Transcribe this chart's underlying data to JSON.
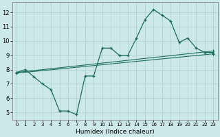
{
  "xlabel": "Humidex (Indice chaleur)",
  "ylabel": "",
  "xlim": [
    -0.5,
    23.5
  ],
  "ylim": [
    4.5,
    12.7
  ],
  "xticks": [
    0,
    1,
    2,
    3,
    4,
    5,
    6,
    7,
    8,
    9,
    10,
    11,
    12,
    13,
    14,
    15,
    16,
    17,
    18,
    19,
    20,
    21,
    22,
    23
  ],
  "yticks": [
    5,
    6,
    7,
    8,
    9,
    10,
    11,
    12
  ],
  "bg_color": "#cce8e8",
  "line_color": "#1a6b5e",
  "grid_color": "#aacfcf",
  "line1_x": [
    0,
    1,
    2,
    3,
    4,
    5,
    6,
    7,
    8,
    9,
    10,
    11,
    12,
    13,
    14,
    15,
    16,
    17,
    18,
    19,
    20,
    21,
    22,
    23
  ],
  "line1_y": [
    7.8,
    8.0,
    7.5,
    7.0,
    6.6,
    5.1,
    5.1,
    4.85,
    7.55,
    7.55,
    9.5,
    9.5,
    9.0,
    9.0,
    10.2,
    11.5,
    12.2,
    11.8,
    11.4,
    9.9,
    10.2,
    9.5,
    9.2,
    9.2
  ],
  "line2_x": [
    0,
    23
  ],
  "line2_y": [
    7.8,
    9.3
  ],
  "line3_x": [
    0,
    23
  ],
  "line3_y": [
    7.75,
    9.1
  ]
}
